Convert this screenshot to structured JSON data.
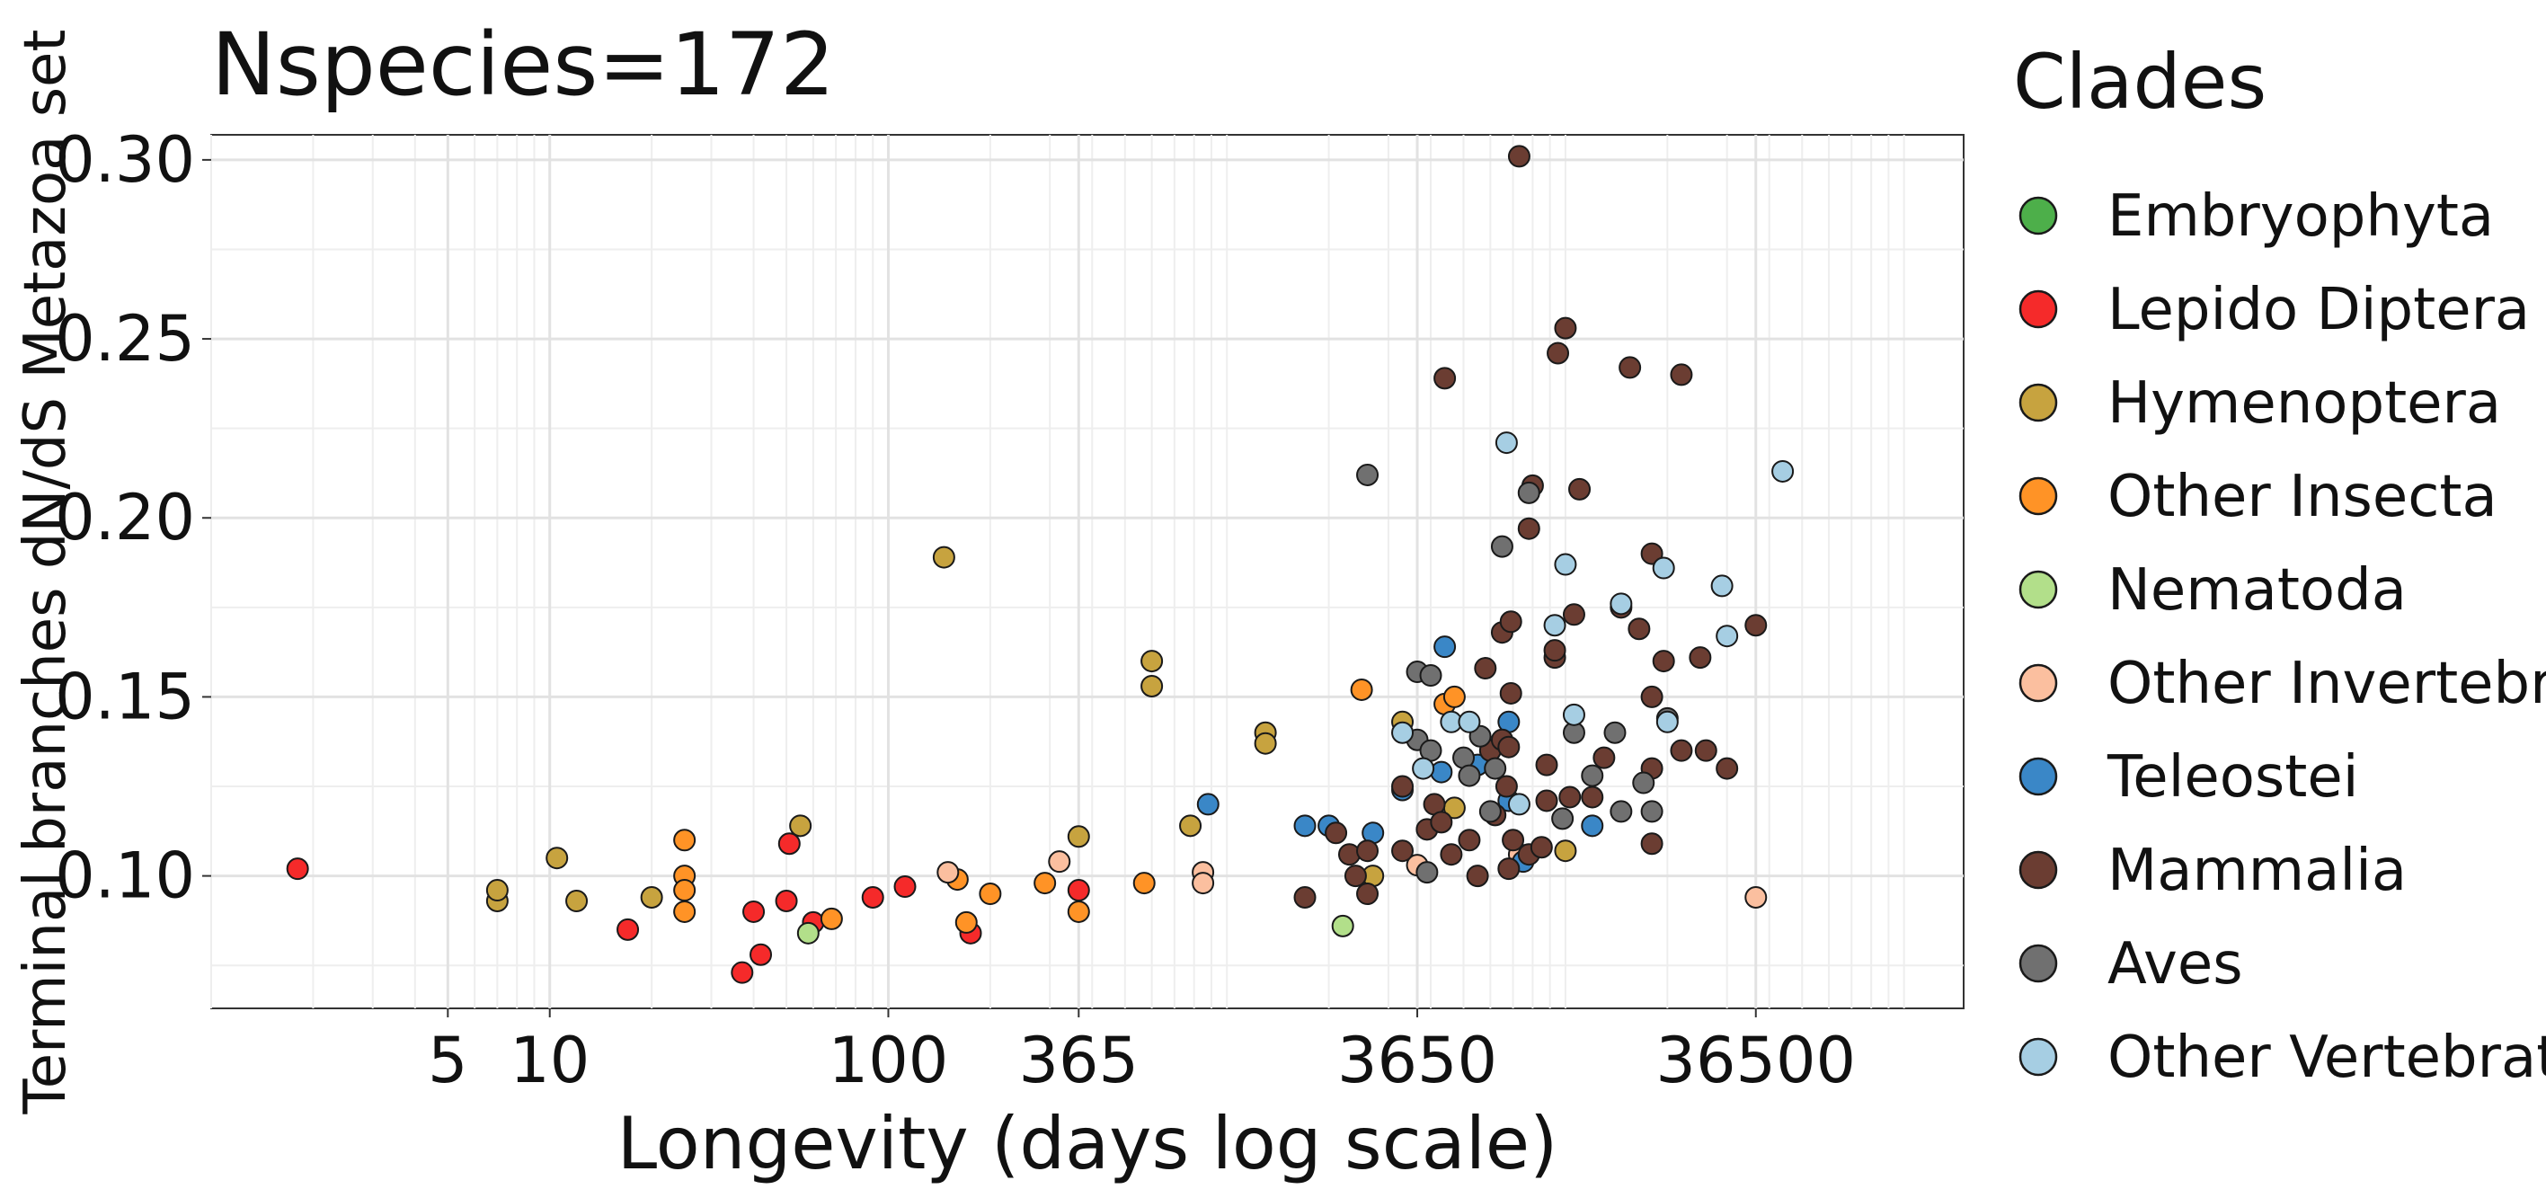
{
  "chart_data": {
    "type": "scatter",
    "title": "Nspecies=172",
    "xlabel": "Longevity (days log scale)",
    "ylabel": "Terminal branches dN/dS Metazoa set",
    "x_scale": "log10",
    "xlim": [
      1,
      150000
    ],
    "ylim": [
      0.063,
      0.307
    ],
    "xticks": [
      5,
      10,
      100,
      365,
      3650,
      36500
    ],
    "xtick_labels": [
      "5",
      "10",
      "100",
      "365",
      "3650",
      "36500"
    ],
    "yticks": [
      0.1,
      0.15,
      0.2,
      0.25,
      0.3
    ],
    "ytick_labels": [
      "0.10",
      "0.15",
      "0.20",
      "0.25",
      "0.30"
    ],
    "grid": true,
    "legend_position": "right",
    "legend_title": "Clades",
    "series": [
      {
        "name": "Embryophyta",
        "color": "#4daf4a",
        "points": []
      },
      {
        "name": "Lepido Diptera",
        "color": "#f52a2a",
        "points": [
          [
            1.8,
            0.102
          ],
          [
            17,
            0.085
          ],
          [
            37,
            0.073
          ],
          [
            40,
            0.09
          ],
          [
            42,
            0.078
          ],
          [
            50,
            0.093
          ],
          [
            51,
            0.109
          ],
          [
            60,
            0.087
          ],
          [
            90,
            0.094
          ],
          [
            112,
            0.097
          ],
          [
            175,
            0.084
          ],
          [
            365,
            0.096
          ]
        ]
      },
      {
        "name": "Hymenoptera",
        "color": "#c7a33f",
        "points": [
          [
            7,
            0.093
          ],
          [
            7,
            0.096
          ],
          [
            10.5,
            0.105
          ],
          [
            12,
            0.093
          ],
          [
            20,
            0.094
          ],
          [
            55,
            0.114
          ],
          [
            146,
            0.189
          ],
          [
            365,
            0.111
          ],
          [
            600,
            0.16
          ],
          [
            600,
            0.153
          ],
          [
            780,
            0.114
          ],
          [
            1300,
            0.14
          ],
          [
            1300,
            0.137
          ],
          [
            2700,
            0.1
          ],
          [
            3300,
            0.143
          ],
          [
            4700,
            0.119
          ],
          [
            10000,
            0.107
          ]
        ]
      },
      {
        "name": "Other Insecta",
        "color": "#ff9326",
        "points": [
          [
            25,
            0.11
          ],
          [
            25,
            0.1
          ],
          [
            25,
            0.096
          ],
          [
            25,
            0.09
          ],
          [
            68,
            0.088
          ],
          [
            160,
            0.099
          ],
          [
            170,
            0.087
          ],
          [
            200,
            0.095
          ],
          [
            290,
            0.098
          ],
          [
            365,
            0.09
          ],
          [
            570,
            0.098
          ],
          [
            2500,
            0.152
          ],
          [
            4400,
            0.148
          ],
          [
            4700,
            0.15
          ]
        ]
      },
      {
        "name": "Nematoda",
        "color": "#b2df8a",
        "points": [
          [
            58,
            0.084
          ],
          [
            2200,
            0.086
          ]
        ]
      },
      {
        "name": "Other Invertebrates",
        "color": "#fbbf9f",
        "points": [
          [
            150,
            0.101
          ],
          [
            320,
            0.104
          ],
          [
            850,
            0.101
          ],
          [
            850,
            0.098
          ],
          [
            3650,
            0.103
          ],
          [
            7300,
            0.106
          ],
          [
            36500,
            0.094
          ]
        ]
      },
      {
        "name": "Teleostei",
        "color": "#3a87c7",
        "points": [
          [
            880,
            0.12
          ],
          [
            1700,
            0.114
          ],
          [
            2000,
            0.114
          ],
          [
            2700,
            0.112
          ],
          [
            3300,
            0.124
          ],
          [
            4300,
            0.129
          ],
          [
            4400,
            0.164
          ],
          [
            5500,
            0.131
          ],
          [
            6800,
            0.143
          ],
          [
            6800,
            0.121
          ],
          [
            7500,
            0.104
          ],
          [
            12000,
            0.114
          ]
        ]
      },
      {
        "name": "Mammalia",
        "color": "#6b3d32",
        "points": [
          [
            1700,
            0.094
          ],
          [
            2100,
            0.112
          ],
          [
            2300,
            0.106
          ],
          [
            2400,
            0.1
          ],
          [
            2600,
            0.107
          ],
          [
            2600,
            0.095
          ],
          [
            3300,
            0.107
          ],
          [
            3900,
            0.113
          ],
          [
            3300,
            0.125
          ],
          [
            5500,
            0.1
          ],
          [
            4100,
            0.12
          ],
          [
            4300,
            0.115
          ],
          [
            4400,
            0.239
          ],
          [
            4600,
            0.106
          ],
          [
            5200,
            0.11
          ],
          [
            5800,
            0.158
          ],
          [
            6000,
            0.135
          ],
          [
            6200,
            0.117
          ],
          [
            6500,
            0.168
          ],
          [
            6500,
            0.138
          ],
          [
            6700,
            0.125
          ],
          [
            6800,
            0.102
          ],
          [
            6800,
            0.136
          ],
          [
            6900,
            0.151
          ],
          [
            6900,
            0.171
          ],
          [
            7000,
            0.11
          ],
          [
            7300,
            0.301
          ],
          [
            7800,
            0.106
          ],
          [
            7800,
            0.197
          ],
          [
            8000,
            0.209
          ],
          [
            8500,
            0.108
          ],
          [
            8800,
            0.131
          ],
          [
            8800,
            0.121
          ],
          [
            9300,
            0.161
          ],
          [
            9300,
            0.163
          ],
          [
            9500,
            0.246
          ],
          [
            10000,
            0.253
          ],
          [
            10300,
            0.122
          ],
          [
            10600,
            0.173
          ],
          [
            11000,
            0.208
          ],
          [
            12000,
            0.122
          ],
          [
            13000,
            0.133
          ],
          [
            14600,
            0.175
          ],
          [
            15500,
            0.242
          ],
          [
            16500,
            0.169
          ],
          [
            18000,
            0.19
          ],
          [
            18000,
            0.15
          ],
          [
            18000,
            0.13
          ],
          [
            18000,
            0.109
          ],
          [
            19500,
            0.16
          ],
          [
            22000,
            0.24
          ],
          [
            22000,
            0.135
          ],
          [
            25000,
            0.161
          ],
          [
            26000,
            0.135
          ],
          [
            30000,
            0.13
          ],
          [
            36500,
            0.17
          ]
        ]
      },
      {
        "name": "Aves",
        "color": "#707070",
        "points": [
          [
            2600,
            0.212
          ],
          [
            3650,
            0.157
          ],
          [
            3650,
            0.138
          ],
          [
            4000,
            0.135
          ],
          [
            4000,
            0.156
          ],
          [
            3900,
            0.101
          ],
          [
            5000,
            0.133
          ],
          [
            5200,
            0.128
          ],
          [
            5600,
            0.139
          ],
          [
            6000,
            0.118
          ],
          [
            6200,
            0.13
          ],
          [
            6500,
            0.192
          ],
          [
            7800,
            0.207
          ],
          [
            9800,
            0.116
          ],
          [
            10600,
            0.14
          ],
          [
            12000,
            0.128
          ],
          [
            14000,
            0.14
          ],
          [
            14600,
            0.118
          ],
          [
            17000,
            0.126
          ],
          [
            18000,
            0.118
          ],
          [
            20000,
            0.144
          ]
        ]
      },
      {
        "name": "Other Vertebrates",
        "color": "#a6cee3",
        "points": [
          [
            3300,
            0.14
          ],
          [
            3800,
            0.13
          ],
          [
            4600,
            0.143
          ],
          [
            5200,
            0.143
          ],
          [
            6700,
            0.221
          ],
          [
            7300,
            0.12
          ],
          [
            9300,
            0.17
          ],
          [
            10000,
            0.187
          ],
          [
            10600,
            0.145
          ],
          [
            14600,
            0.176
          ],
          [
            19500,
            0.186
          ],
          [
            20000,
            0.143
          ],
          [
            29000,
            0.181
          ],
          [
            30000,
            0.167
          ],
          [
            43800,
            0.213
          ]
        ]
      }
    ]
  }
}
